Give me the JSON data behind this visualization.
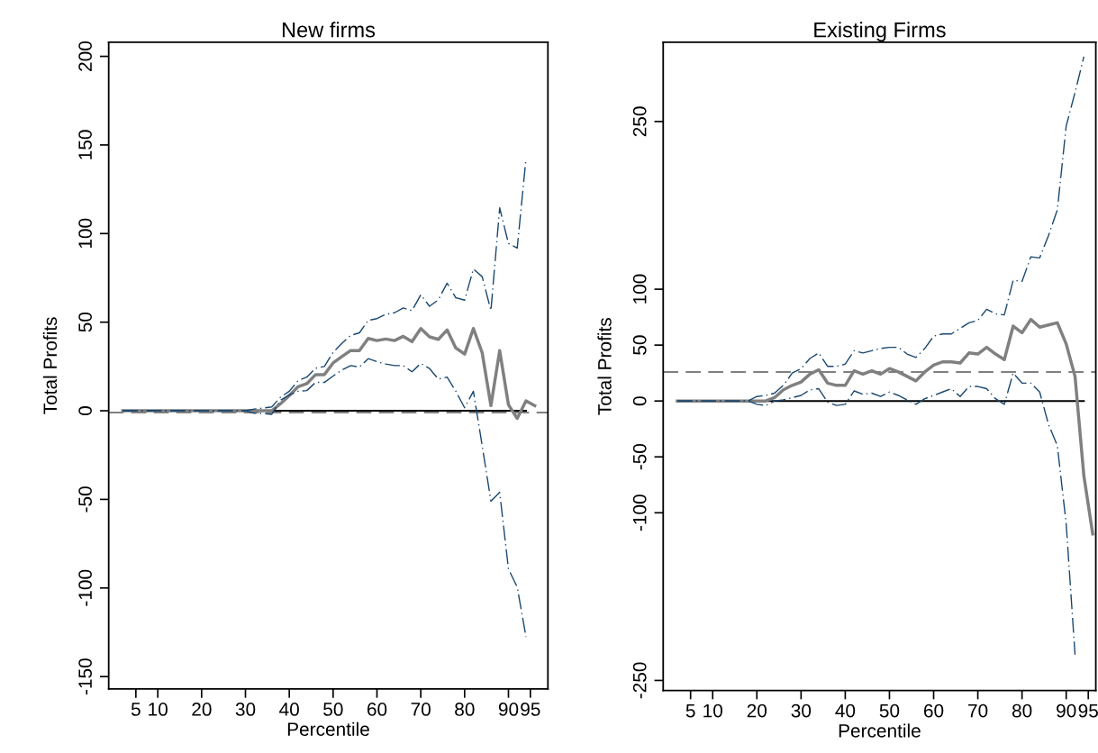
{
  "chart_data": [
    {
      "type": "line",
      "title": "New firms",
      "xlabel": "Percentile",
      "ylabel": "Total Profits",
      "xlim": [
        -1.2,
        99
      ],
      "xticks": [
        5,
        10,
        20,
        30,
        40,
        50,
        60,
        70,
        80,
        90,
        95
      ],
      "ylim": [
        -157,
        208
      ],
      "yticks": [
        -150,
        -100,
        -50,
        0,
        50,
        100,
        150,
        200
      ],
      "grid": false,
      "legend": false,
      "ref_lines": [
        {
          "axis": "y",
          "value": -1,
          "color": "#808080",
          "line_style": "dashed"
        }
      ],
      "series": [
        {
          "color": "#000000",
          "line_style": "solid",
          "x": [
            2,
            94
          ],
          "values": [
            0,
            0
          ]
        },
        {
          "color": "#808080",
          "line_style": "solid",
          "x": [
            2,
            4,
            6,
            8,
            10,
            12,
            14,
            16,
            18,
            20,
            22,
            24,
            26,
            28,
            30,
            32,
            34,
            36,
            38,
            40,
            42,
            44,
            46,
            48,
            50,
            52,
            54,
            56,
            58,
            60,
            62,
            64,
            66,
            68,
            70,
            72,
            74,
            76,
            78,
            80,
            82,
            84,
            86,
            88,
            90,
            92,
            94,
            96
          ],
          "values": [
            0,
            0,
            0,
            0,
            0,
            0,
            0,
            0,
            0,
            0,
            0,
            0,
            0,
            0,
            0,
            0,
            0,
            0,
            4,
            8.5,
            13.6,
            15.3,
            20.4,
            20.4,
            27,
            30.6,
            34,
            34,
            40.8,
            39.6,
            40.5,
            39.6,
            42,
            39,
            46.4,
            41.7,
            40.3,
            45.6,
            35.4,
            32,
            46.4,
            32.8,
            2.9,
            34,
            3.4,
            -4.3,
            5.6,
            2.9
          ]
        },
        {
          "color": "#1a476f",
          "line_style": "dashdot",
          "x": [
            2,
            4,
            6,
            8,
            10,
            12,
            14,
            16,
            18,
            20,
            22,
            24,
            26,
            28,
            30,
            32,
            34,
            36,
            38,
            40,
            42,
            44,
            46,
            48,
            50,
            52,
            54,
            56,
            58,
            60,
            62,
            64,
            66,
            68,
            70,
            72,
            74,
            76,
            78,
            80,
            82,
            84,
            86,
            88,
            90,
            92,
            94
          ],
          "values": [
            0,
            0,
            0,
            0,
            0,
            0,
            0,
            0,
            0,
            0,
            0,
            0,
            0,
            0,
            0,
            1,
            1.5,
            2.2,
            7.7,
            11,
            17,
            19,
            24,
            25,
            33,
            38,
            42.5,
            44,
            51,
            52,
            54.4,
            55.3,
            58,
            56.5,
            65.5,
            59,
            62.6,
            72,
            63.8,
            62.4,
            80,
            75.7,
            56.6,
            114.5,
            94.4,
            91.8,
            142.3
          ]
        },
        {
          "color": "#1a476f",
          "line_style": "dashdot",
          "x": [
            2,
            4,
            6,
            8,
            10,
            12,
            14,
            16,
            18,
            20,
            22,
            24,
            26,
            28,
            30,
            32,
            34,
            36,
            38,
            40,
            42,
            44,
            46,
            48,
            50,
            52,
            54,
            56,
            58,
            60,
            62,
            64,
            66,
            68,
            70,
            72,
            74,
            76,
            78,
            80,
            82,
            84,
            86,
            88,
            90,
            92,
            94
          ],
          "values": [
            0,
            0,
            0,
            0,
            0,
            0,
            0,
            0,
            0,
            0,
            0,
            0,
            0,
            0,
            0,
            -1.4,
            -1.5,
            -2,
            6,
            9,
            11,
            11.4,
            16,
            16,
            19.6,
            23,
            25.5,
            24.7,
            29.4,
            27.7,
            26.4,
            25.5,
            25.5,
            22,
            26.7,
            23.8,
            17.9,
            19,
            11,
            1.7,
            11,
            -19.6,
            -51,
            -46,
            -89.3,
            -99.5,
            -127.6
          ]
        }
      ]
    },
    {
      "type": "line",
      "title": "Existing Firms",
      "xlabel": "Percentile",
      "ylabel": "Total Profits",
      "xlim": [
        -1.2,
        96.7
      ],
      "xticks": [
        5,
        10,
        20,
        30,
        40,
        50,
        60,
        70,
        80,
        90,
        95
      ],
      "ylim": [
        -259,
        321
      ],
      "yticks": [
        -250,
        -100,
        -50,
        0,
        50,
        100,
        250
      ],
      "grid": false,
      "legend": false,
      "ref_lines": [
        {
          "axis": "y",
          "value": 26,
          "color": "#808080",
          "line_style": "dashed"
        }
      ],
      "series": [
        {
          "color": "#000000",
          "line_style": "solid",
          "x": [
            2,
            94
          ],
          "values": [
            0,
            0
          ]
        },
        {
          "color": "#808080",
          "line_style": "solid",
          "x": [
            2,
            4,
            6,
            8,
            10,
            12,
            14,
            16,
            18,
            20,
            22,
            24,
            26,
            28,
            30,
            32,
            34,
            36,
            38,
            40,
            42,
            44,
            46,
            48,
            50,
            52,
            54,
            56,
            58,
            60,
            62,
            64,
            66,
            68,
            70,
            72,
            74,
            76,
            78,
            80,
            82,
            84,
            86,
            88,
            90,
            92,
            94,
            96
          ],
          "values": [
            0,
            0,
            0,
            0,
            0,
            0,
            0,
            0,
            0,
            0,
            0,
            3,
            10,
            14,
            17,
            24,
            28,
            16,
            14,
            14,
            27,
            24,
            27,
            24,
            29,
            26,
            22,
            18,
            26,
            32,
            35,
            35,
            34,
            43,
            42,
            48,
            42,
            37,
            67,
            61,
            73,
            66,
            68,
            70,
            51,
            22,
            -67,
            -119
          ]
        },
        {
          "color": "#1a476f",
          "line_style": "dashdot",
          "x": [
            2,
            4,
            6,
            8,
            10,
            12,
            14,
            16,
            18,
            20,
            22,
            24,
            26,
            28,
            30,
            32,
            34,
            36,
            38,
            40,
            42,
            44,
            46,
            48,
            50,
            52,
            54,
            56,
            58,
            60,
            62,
            64,
            66,
            68,
            70,
            72,
            74,
            76,
            78,
            80,
            82,
            84,
            86,
            88,
            90,
            92,
            94
          ],
          "values": [
            0,
            0,
            0,
            0,
            0,
            0,
            0,
            0,
            0,
            4,
            5,
            7,
            14,
            25,
            29,
            38,
            43,
            31,
            31,
            33,
            45,
            43,
            45,
            47,
            48,
            48,
            42,
            39,
            47,
            58,
            60,
            60,
            65,
            70,
            72,
            82,
            78,
            77,
            108,
            107,
            129,
            128,
            148,
            171,
            246,
            276,
            308
          ]
        },
        {
          "color": "#1a476f",
          "line_style": "dashdot",
          "x": [
            2,
            4,
            6,
            8,
            10,
            12,
            14,
            16,
            18,
            20,
            22,
            24,
            26,
            28,
            30,
            32,
            34,
            36,
            38,
            40,
            42,
            44,
            46,
            48,
            50,
            52,
            54,
            56,
            58,
            60,
            62,
            64,
            66,
            68,
            70,
            72,
            74,
            76,
            78,
            80,
            82,
            84,
            86,
            88,
            90,
            92
          ],
          "values": [
            0,
            0,
            0,
            0,
            0,
            0,
            0,
            0,
            0,
            -3,
            -4,
            0,
            1,
            3,
            5,
            10,
            11,
            -1,
            -4,
            -3,
            9,
            6,
            7,
            4,
            8,
            5,
            1,
            -3,
            2,
            5,
            8,
            11,
            4,
            13,
            13,
            11,
            2,
            -3,
            25,
            16,
            16,
            8,
            -21,
            -40,
            -110,
            -227
          ]
        }
      ]
    }
  ]
}
